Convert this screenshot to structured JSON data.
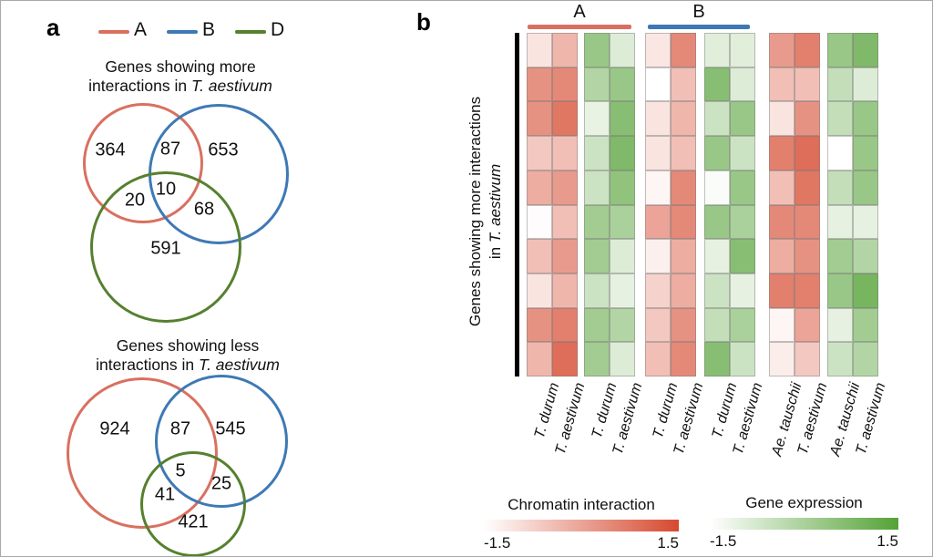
{
  "panel_a": {
    "label": "a",
    "legend": [
      {
        "label": "A",
        "color": "#D9705F"
      },
      {
        "label": "B",
        "color": "#3E79B5"
      },
      {
        "label": "D",
        "color": "#56802F"
      }
    ],
    "venn_more": {
      "title_l1": "Genes showing more",
      "title_l2_pre": "interactions in ",
      "title_l2_it": "T. aestivum"
    },
    "venn_less": {
      "title_l1": "Genes showing less",
      "title_l2_pre": "interactions in ",
      "title_l2_it": "T. aestivum"
    }
  },
  "panel_b": {
    "label": "b",
    "groups": [
      {
        "label": "A",
        "color": "#D9705F"
      },
      {
        "label": "B",
        "color": "#3E79B5"
      }
    ],
    "ylabel_l1": "Genes showing more interactions",
    "ylabel_l2_pre": "in ",
    "ylabel_l2_it": "T. aestivum",
    "legends": [
      {
        "title": "Chromatin interaction",
        "min_label": "-1.5",
        "max_label": "1.5",
        "color": "#D6492F"
      },
      {
        "title": "Gene expression",
        "min_label": "-1.5",
        "max_label": "1.5",
        "color": "#55A237"
      }
    ]
  },
  "chart_data": [
    {
      "type": "venn3",
      "title": "Genes showing more interactions in T. aestivum",
      "sets": [
        "A",
        "B",
        "D"
      ],
      "regions": {
        "A": 364,
        "AB": 87,
        "B": 653,
        "AD": 20,
        "ABD": 10,
        "BD": 68,
        "D": 591
      }
    },
    {
      "type": "venn3",
      "title": "Genes showing less interactions in T. aestivum",
      "sets": [
        "A",
        "B",
        "D"
      ],
      "regions": {
        "A": 924,
        "AB": 87,
        "B": 545,
        "ABD": 5,
        "AD": 41,
        "BD": 25,
        "D": 421
      }
    },
    {
      "type": "heatmap",
      "title": "Genes showing more interactions in T. aestivum",
      "value_range": [
        -1.5,
        1.5
      ],
      "row_count": 10,
      "blocks": [
        {
          "group": "A",
          "measure": "Chromatin interaction",
          "palette_max": "#D6492F",
          "columns": [
            "T. durum",
            "T. aestivum"
          ],
          "rows": [
            [
              -1.05,
              -0.3
            ],
            [
              0.3,
              0.45
            ],
            [
              0.3,
              0.75
            ],
            [
              -0.6,
              -0.45
            ],
            [
              -0.15,
              0.15
            ],
            [
              -1.45,
              -0.45
            ],
            [
              -0.45,
              0.15
            ],
            [
              -1.05,
              -0.3
            ],
            [
              0.3,
              0.6
            ],
            [
              -0.3,
              0.9
            ]
          ]
        },
        {
          "group": "A",
          "measure": "Gene expression",
          "palette_max": "#55A237",
          "columns": [
            "T. durum",
            "T. aestivum"
          ],
          "rows": [
            [
              0.3,
              -0.9
            ],
            [
              -0.15,
              0.3
            ],
            [
              -1.1,
              0.6
            ],
            [
              -0.6,
              0.75
            ],
            [
              -0.6,
              0.45
            ],
            [
              0.15,
              0.0
            ],
            [
              0.15,
              -0.9
            ],
            [
              -0.6,
              -1.05
            ],
            [
              0.15,
              -0.15
            ],
            [
              0.15,
              -0.9
            ]
          ]
        },
        {
          "group": "B",
          "measure": "Chromatin interaction",
          "palette_max": "#D6492F",
          "columns": [
            "T. durum",
            "T. aestivum"
          ],
          "rows": [
            [
              -1.1,
              0.45
            ],
            [
              -1.5,
              -0.45
            ],
            [
              -1.05,
              -0.3
            ],
            [
              -1.05,
              -0.45
            ],
            [
              -1.35,
              0.45
            ],
            [
              0.0,
              0.45
            ],
            [
              -1.25,
              -0.15
            ],
            [
              -0.75,
              -0.15
            ],
            [
              -0.6,
              0.3
            ],
            [
              -0.45,
              0.45
            ]
          ]
        },
        {
          "group": "B",
          "measure": "Gene expression",
          "palette_max": "#55A237",
          "columns": [
            "T. durum",
            "T. aestivum"
          ],
          "rows": [
            [
              -0.95,
              -0.95
            ],
            [
              0.6,
              -0.9
            ],
            [
              -0.6,
              0.3
            ],
            [
              0.3,
              -0.6
            ],
            [
              -1.4,
              0.3
            ],
            [
              0.3,
              0.0
            ],
            [
              -1.05,
              0.6
            ],
            [
              -0.6,
              -1.05
            ],
            [
              -0.45,
              0.0
            ],
            [
              0.6,
              -0.6
            ]
          ]
        },
        {
          "group": "D",
          "measure": "Chromatin interaction",
          "palette_max": "#D6492F",
          "columns": [
            "Ae. tauschii",
            "T. aestivum"
          ],
          "rows": [
            [
              0.15,
              0.6
            ],
            [
              -0.45,
              -0.45
            ],
            [
              -1.05,
              0.3
            ],
            [
              0.6,
              0.9
            ],
            [
              -0.45,
              0.75
            ],
            [
              0.45,
              0.45
            ],
            [
              -0.15,
              0.3
            ],
            [
              0.6,
              0.6
            ],
            [
              -1.35,
              0.0
            ],
            [
              -1.2,
              -0.6
            ]
          ]
        },
        {
          "group": "D",
          "measure": "Gene expression",
          "palette_max": "#55A237",
          "columns": [
            "Ae. tauschii",
            "T. aestivum"
          ],
          "rows": [
            [
              0.3,
              0.75
            ],
            [
              -0.45,
              -0.9
            ],
            [
              -0.45,
              0.3
            ],
            [
              -1.5,
              0.3
            ],
            [
              -0.45,
              0.3
            ],
            [
              -1.05,
              -1.05
            ],
            [
              0.15,
              -0.15
            ],
            [
              0.3,
              0.9
            ],
            [
              -1.05,
              0.15
            ],
            [
              -0.6,
              -0.15
            ]
          ]
        }
      ]
    }
  ]
}
